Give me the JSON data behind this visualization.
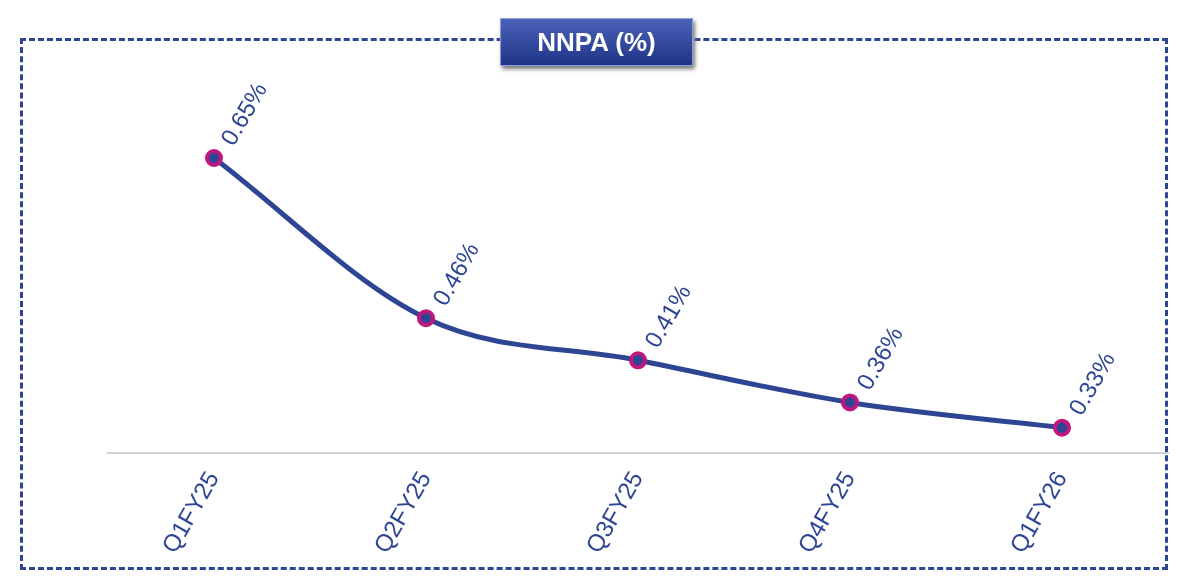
{
  "chart_data": {
    "type": "line",
    "title": "NNPA (%)",
    "categories": [
      "Q1FY25",
      "Q2FY25",
      "Q3FY25",
      "Q4FY25",
      "Q1FY26"
    ],
    "series": [
      {
        "color": "#2e4594",
        "values": [
          0.65,
          0.46,
          0.41,
          0.36,
          0.33
        ],
        "value_labels": [
          "0.65%",
          "0.46%",
          "0.41%",
          "0.36%",
          "0.33%"
        ]
      }
    ],
    "marker": "circle",
    "tick_labels": "x",
    "grid": false,
    "legend": false
  }
}
